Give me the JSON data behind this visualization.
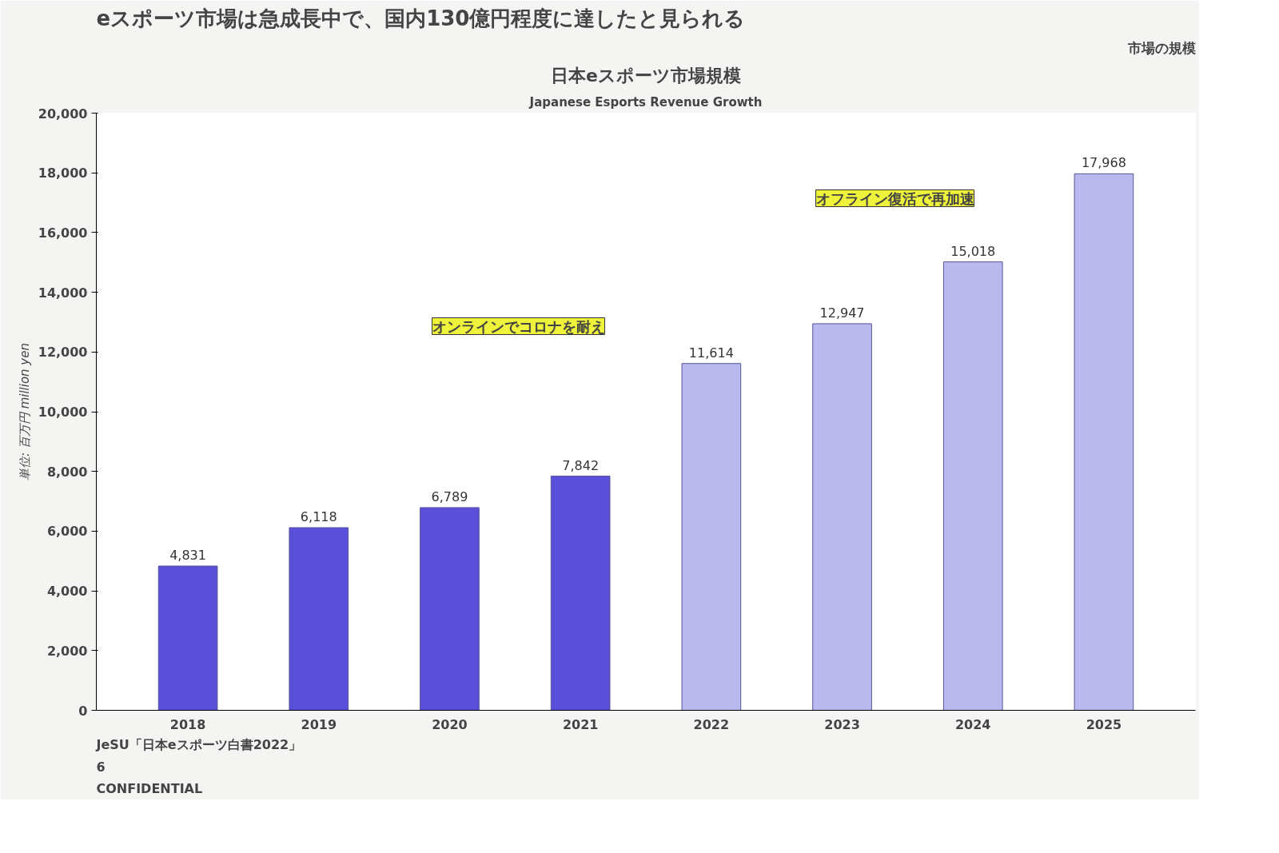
{
  "chart_data": {
    "type": "bar",
    "title": "eスポーツ市場は急成長中で、国内130億円程度に達したと見られる",
    "subtitle": "日本eスポーツ市場規模",
    "ylabel": "単位: 百万円 million yen",
    "categories": [
      "2018",
      "2019",
      "2020",
      "2021",
      "2022",
      "2023",
      "2024",
      "2025"
    ],
    "values": [
      4831,
      6118,
      6789,
      7842,
      11614,
      12947,
      15018,
      17968
    ],
    "colors": [
      "#5a4fd8",
      "#5a4fd8",
      "#5a4fd8",
      "#5a4fd8",
      "#b9b9ef",
      "#b9b9ef",
      "#b9b9ef",
      "#b9b9ef"
    ],
    "value_labels": [
      "4,831",
      "6,118",
      "6,789",
      "7,842",
      "11,614",
      "12,947",
      "15,018",
      "17,968"
    ],
    "ylim": [
      0,
      20000
    ],
    "yticks": [
      0,
      {
        "value": 2000,
        "label": "2,000"
      },
      {
        "value": 4000,
        "label": "4,000"
      },
      {
        "value": 6000,
        "label": "6,000"
      },
      {
        "value": 8000,
        "label": "8,000"
      },
      {
        "value": 10000,
        "label": "10,000"
      },
      {
        "value": 12000,
        "label": "12,000"
      },
      {
        "value": 14000,
        "label": "14,000"
      },
      {
        "value": 16000,
        "label": "16,000"
      },
      {
        "value": 18000,
        "label": "18,000"
      },
      {
        "value": 20000,
        "label": "20,000"
      }
    ],
    "grid": false,
    "annotations": [
      "市場の規模",
      "Japanese Esports Revenue Growth",
      "オンラインでコロナを耐え",
      "オフライン復活で再加速",
      "JeSU「日本eスポーツ白書2022」",
      "6",
      "CONFIDENTIAL"
    ]
  }
}
